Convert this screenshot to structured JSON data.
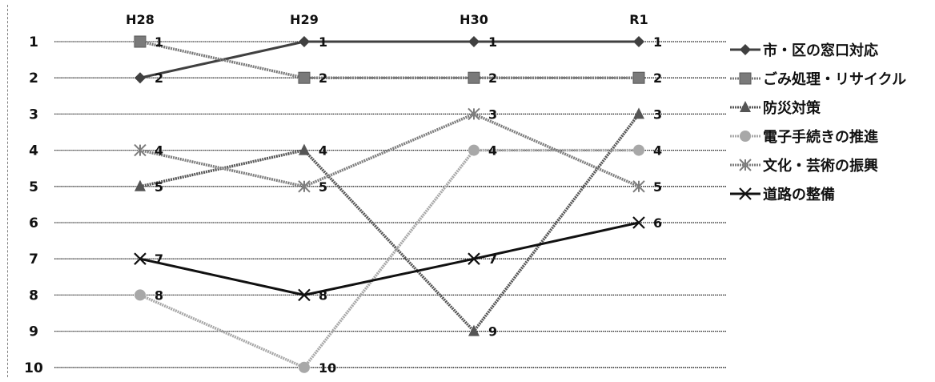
{
  "chart_data": {
    "type": "line",
    "x": [
      "H28",
      "H29",
      "H30",
      "R1"
    ],
    "yticks": [
      1,
      2,
      3,
      4,
      5,
      6,
      7,
      8,
      9,
      10
    ],
    "ylim": [
      1,
      10
    ],
    "y_inverted": true,
    "grid": true,
    "legend_position": "right",
    "series": [
      {
        "name": "市・区の窓口対応",
        "values": [
          2,
          1,
          1,
          1
        ],
        "marker": "diamond",
        "color": "#404040",
        "stroke": "solid"
      },
      {
        "name": "ごみ処理・リサイクル",
        "values": [
          1,
          2,
          2,
          2
        ],
        "marker": "square",
        "color": "#7a7a7a",
        "stroke": "hatched"
      },
      {
        "name": "防災対策",
        "values": [
          5,
          4,
          9,
          3
        ],
        "marker": "triangle",
        "color": "#555555",
        "stroke": "hatched"
      },
      {
        "name": "電子手続きの推進",
        "values": [
          8,
          10,
          4,
          4
        ],
        "marker": "circle",
        "color": "#a8a8a8",
        "stroke": "hatched"
      },
      {
        "name": "文化・芸術の振興",
        "values": [
          4,
          5,
          3,
          5
        ],
        "marker": "asterisk",
        "color": "#7d7d7d",
        "stroke": "hatched"
      },
      {
        "name": "道路の整備",
        "values": [
          7,
          8,
          7,
          6
        ],
        "marker": "x",
        "color": "#111111",
        "stroke": "solid"
      }
    ]
  }
}
